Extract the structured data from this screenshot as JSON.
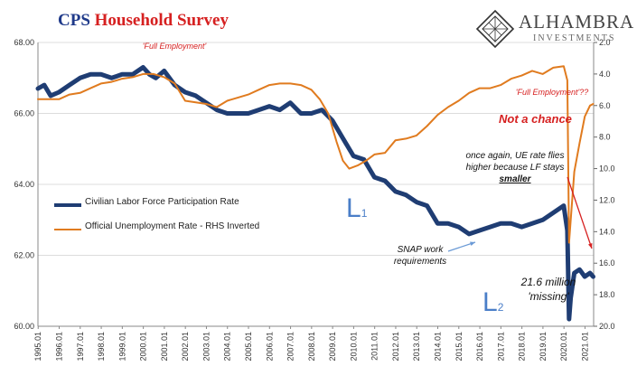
{
  "title": {
    "part1": "CPS",
    "part2": "Household Survey"
  },
  "logo": {
    "name": "ALHAMBRA",
    "sub": "INVESTMENTS"
  },
  "legend": {
    "series1": "Civilian Labor Force Participation Rate",
    "series2": "Official Unemployment Rate - RHS Inverted"
  },
  "annotations": {
    "full_employment": "'Full Employment'",
    "full_employment_q": "'Full Employment'??",
    "not_a_chance": "Not a chance",
    "ue_note_1": "once again, UE rate flies",
    "ue_note_2": "higher because LF stays",
    "ue_note_3": "smaller",
    "snap_1": "SNAP work",
    "snap_2": "requirements",
    "missing_1": "21.6 million",
    "missing_2": "'missing'",
    "l1": "L",
    "l1_sub": "1",
    "l2": "L",
    "l2_sub": "2"
  },
  "colors": {
    "lfpr": "#1f3d73",
    "unemployment": "#e07b1f",
    "title_blue": "#1f3a8a",
    "title_red": "#d62020",
    "note_red": "#d62020",
    "l_blue": "#4a7ec8"
  },
  "chart_data": {
    "type": "line",
    "x_tick_labels": [
      "1995.01",
      "1996.01",
      "1997.01",
      "1998.01",
      "1999.01",
      "2000.01",
      "2001.01",
      "2002.01",
      "2003.01",
      "2004.01",
      "2005.01",
      "2006.01",
      "2007.01",
      "2008.01",
      "2009.01",
      "2010.01",
      "2011.01",
      "2012.01",
      "2013.01",
      "2014.01",
      "2015.01",
      "2016.01",
      "2017.01",
      "2018.01",
      "2019.01",
      "2020.01",
      "2021.01"
    ],
    "xlim": [
      1995.0,
      2021.42
    ],
    "left_axis": {
      "ylim": [
        60,
        68
      ],
      "ticks": [
        "60.00",
        "62.00",
        "64.00",
        "66.00",
        "68.00"
      ]
    },
    "right_axis": {
      "ylim": [
        20,
        2
      ],
      "inverted": true,
      "ticks": [
        "2.0",
        "4.0",
        "6.0",
        "8.0",
        "10.0",
        "12.0",
        "14.0",
        "16.0",
        "18.0",
        "20.0"
      ]
    },
    "series": [
      {
        "name": "Civilian Labor Force Participation Rate",
        "axis": "left",
        "x": [
          1995.0,
          1995.3,
          1995.6,
          1996.0,
          1996.5,
          1997.0,
          1997.5,
          1998.0,
          1998.5,
          1999.0,
          1999.5,
          2000.0,
          2000.3,
          2000.6,
          2001.0,
          2001.5,
          2002.0,
          2002.5,
          2003.0,
          2003.5,
          2004.0,
          2004.5,
          2005.0,
          2005.5,
          2006.0,
          2006.5,
          2007.0,
          2007.5,
          2008.0,
          2008.5,
          2009.0,
          2009.5,
          2010.0,
          2010.5,
          2011.0,
          2011.5,
          2012.0,
          2012.5,
          2013.0,
          2013.5,
          2014.0,
          2014.5,
          2015.0,
          2015.5,
          2016.0,
          2016.5,
          2017.0,
          2017.5,
          2018.0,
          2018.5,
          2019.0,
          2019.5,
          2020.0,
          2020.17,
          2020.25,
          2020.33,
          2020.5,
          2020.75,
          2021.0,
          2021.25,
          2021.4
        ],
        "values": [
          66.7,
          66.8,
          66.5,
          66.6,
          66.8,
          67.0,
          67.1,
          67.1,
          67.0,
          67.1,
          67.1,
          67.3,
          67.1,
          67.0,
          67.2,
          66.8,
          66.6,
          66.5,
          66.3,
          66.1,
          66.0,
          66.0,
          66.0,
          66.1,
          66.2,
          66.1,
          66.3,
          66.0,
          66.0,
          66.1,
          65.8,
          65.3,
          64.8,
          64.7,
          64.2,
          64.1,
          63.8,
          63.7,
          63.5,
          63.4,
          62.9,
          62.9,
          62.8,
          62.6,
          62.7,
          62.8,
          62.9,
          62.9,
          62.8,
          62.9,
          63.0,
          63.2,
          63.4,
          62.7,
          60.2,
          60.8,
          61.5,
          61.6,
          61.4,
          61.5,
          61.4
        ]
      },
      {
        "name": "Official Unemployment Rate - RHS Inverted",
        "axis": "right",
        "x": [
          1995.0,
          1995.5,
          1996.0,
          1996.5,
          1997.0,
          1997.5,
          1998.0,
          1998.5,
          1999.0,
          1999.5,
          2000.0,
          2000.5,
          2001.0,
          2001.5,
          2002.0,
          2002.5,
          2003.0,
          2003.5,
          2004.0,
          2004.5,
          2005.0,
          2005.5,
          2006.0,
          2006.5,
          2007.0,
          2007.5,
          2008.0,
          2008.4,
          2008.8,
          2009.2,
          2009.5,
          2009.8,
          2010.2,
          2010.6,
          2011.0,
          2011.5,
          2012.0,
          2012.5,
          2013.0,
          2013.5,
          2014.0,
          2014.5,
          2015.0,
          2015.5,
          2016.0,
          2016.5,
          2017.0,
          2017.5,
          2018.0,
          2018.5,
          2019.0,
          2019.5,
          2020.0,
          2020.17,
          2020.25,
          2020.33,
          2020.5,
          2020.75,
          2021.0,
          2021.25,
          2021.4
        ],
        "values": [
          5.6,
          5.6,
          5.6,
          5.3,
          5.2,
          4.9,
          4.6,
          4.5,
          4.3,
          4.2,
          4.0,
          4.0,
          4.2,
          4.6,
          5.7,
          5.8,
          5.9,
          6.1,
          5.7,
          5.5,
          5.3,
          5.0,
          4.7,
          4.6,
          4.6,
          4.7,
          5.0,
          5.6,
          6.5,
          8.3,
          9.5,
          10.0,
          9.8,
          9.5,
          9.1,
          9.0,
          8.2,
          8.1,
          7.9,
          7.3,
          6.6,
          6.1,
          5.7,
          5.2,
          4.9,
          4.9,
          4.7,
          4.3,
          4.1,
          3.8,
          4.0,
          3.6,
          3.5,
          4.4,
          14.7,
          13.3,
          10.2,
          8.4,
          6.7,
          6.0,
          5.9
        ]
      }
    ]
  }
}
